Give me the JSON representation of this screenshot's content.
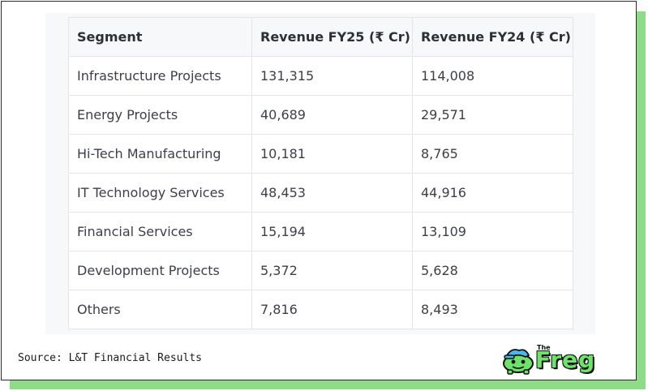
{
  "table": {
    "headers": [
      "Segment",
      "Revenue FY25 (₹ Cr)",
      "Revenue FY24 (₹ Cr)"
    ],
    "rows": [
      [
        "Infrastructure Projects",
        "131,315",
        "114,008"
      ],
      [
        "Energy Projects",
        "40,689",
        "29,571"
      ],
      [
        "Hi-Tech Manufacturing",
        "10,181",
        "8,765"
      ],
      [
        "IT Technology Services",
        "48,453",
        "44,916"
      ],
      [
        "Financial Services",
        "15,194",
        "13,109"
      ],
      [
        "Development Projects",
        "5,372",
        "5,628"
      ],
      [
        "Others",
        "7,816",
        "8,493"
      ]
    ]
  },
  "footer": {
    "source": "Source: L&T Financial Results"
  },
  "logo": {
    "small": "The",
    "word": "Freg",
    "icon": "frog-mascot-icon"
  },
  "colors": {
    "accent_green": "#8fdc88",
    "logo_green": "#6ee36a",
    "border": "#e3e5e8"
  }
}
